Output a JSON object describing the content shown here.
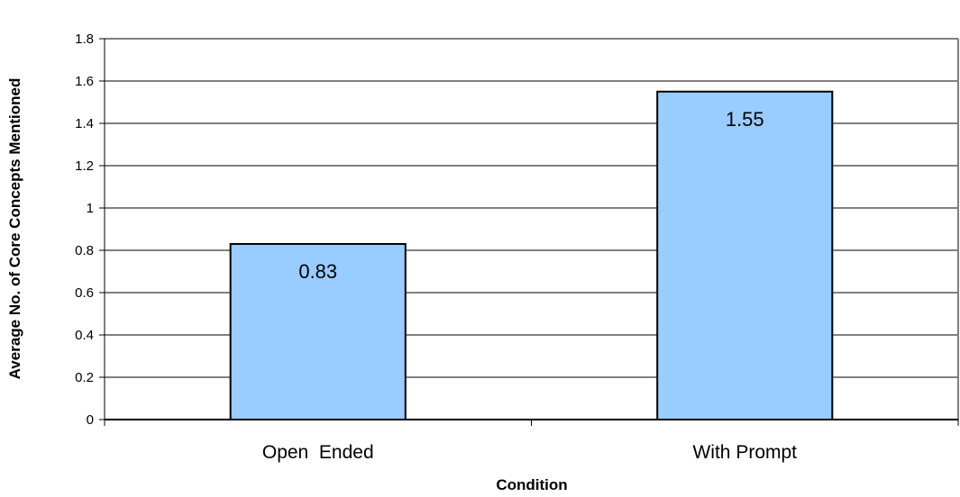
{
  "chart_data": {
    "type": "bar",
    "title": "",
    "xlabel": "Condition",
    "ylabel": "Average No. of Core Concepts Mentioned",
    "categories": [
      "Open  Ended",
      "With Prompt"
    ],
    "values": [
      0.83,
      1.55
    ],
    "data_labels": [
      "0.83",
      "1.55"
    ],
    "ylim": [
      0,
      1.8
    ],
    "ytick_step": 0.2,
    "ytick_labels": [
      "0",
      "0.2",
      "0.4",
      "0.6",
      "0.8",
      "1",
      "1.2",
      "1.4",
      "1.6",
      "1.8"
    ],
    "grid": true,
    "legend": "none",
    "colors": {
      "bar_fill": "#99ccff",
      "bar_stroke": "#000000",
      "grid": "#000000",
      "plot_border": "#808080"
    }
  }
}
